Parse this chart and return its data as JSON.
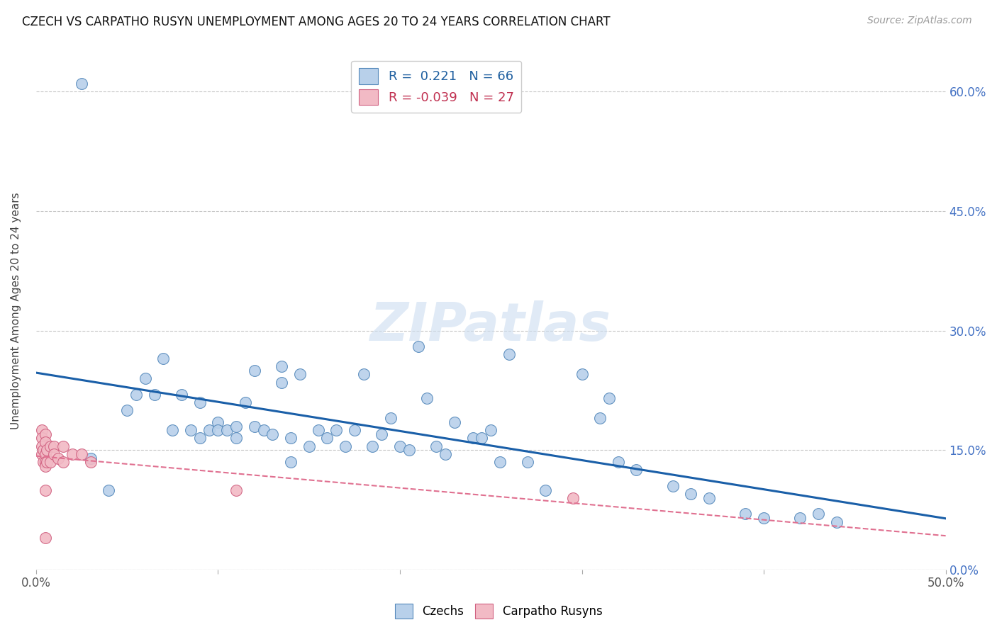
{
  "title": "CZECH VS CARPATHO RUSYN UNEMPLOYMENT AMONG AGES 20 TO 24 YEARS CORRELATION CHART",
  "source": "Source: ZipAtlas.com",
  "ylabel": "Unemployment Among Ages 20 to 24 years",
  "xlim": [
    0.0,
    0.5
  ],
  "ylim": [
    0.0,
    0.65
  ],
  "yticks_right": [
    0.0,
    0.15,
    0.3,
    0.45,
    0.6
  ],
  "ytick_labels_right": [
    "0.0%",
    "15.0%",
    "30.0%",
    "45.0%",
    "60.0%"
  ],
  "xtick_positions": [
    0.0,
    0.1,
    0.2,
    0.3,
    0.4,
    0.5
  ],
  "xtick_labels": [
    "0.0%",
    "",
    "",
    "",
    "",
    "50.0%"
  ],
  "background_color": "#ffffff",
  "grid_color": "#c8c8c8",
  "czech_fill_color": "#b8d0ea",
  "czech_edge_color": "#5589bb",
  "carpatho_fill_color": "#f2bac5",
  "carpatho_edge_color": "#d06080",
  "czech_line_color": "#1a5fa8",
  "carpatho_line_color": "#e07090",
  "watermark": "ZIPatlas",
  "legend_R_czech": " 0.221",
  "legend_N_czech": "66",
  "legend_R_carpatho": "-0.039",
  "legend_N_carpatho": "27",
  "czech_x": [
    0.025,
    0.03,
    0.04,
    0.05,
    0.055,
    0.06,
    0.065,
    0.07,
    0.075,
    0.08,
    0.085,
    0.09,
    0.09,
    0.095,
    0.1,
    0.1,
    0.105,
    0.11,
    0.11,
    0.115,
    0.12,
    0.12,
    0.125,
    0.13,
    0.135,
    0.135,
    0.14,
    0.14,
    0.145,
    0.15,
    0.155,
    0.16,
    0.165,
    0.17,
    0.175,
    0.18,
    0.185,
    0.19,
    0.195,
    0.2,
    0.205,
    0.21,
    0.215,
    0.22,
    0.225,
    0.23,
    0.24,
    0.245,
    0.25,
    0.255,
    0.26,
    0.27,
    0.28,
    0.3,
    0.31,
    0.315,
    0.32,
    0.33,
    0.35,
    0.36,
    0.37,
    0.39,
    0.4,
    0.42,
    0.43,
    0.44
  ],
  "czech_y": [
    0.61,
    0.14,
    0.1,
    0.2,
    0.22,
    0.24,
    0.22,
    0.265,
    0.175,
    0.22,
    0.175,
    0.21,
    0.165,
    0.175,
    0.185,
    0.175,
    0.175,
    0.18,
    0.165,
    0.21,
    0.18,
    0.25,
    0.175,
    0.17,
    0.255,
    0.235,
    0.165,
    0.135,
    0.245,
    0.155,
    0.175,
    0.165,
    0.175,
    0.155,
    0.175,
    0.245,
    0.155,
    0.17,
    0.19,
    0.155,
    0.15,
    0.28,
    0.215,
    0.155,
    0.145,
    0.185,
    0.165,
    0.165,
    0.175,
    0.135,
    0.27,
    0.135,
    0.1,
    0.245,
    0.19,
    0.215,
    0.135,
    0.125,
    0.105,
    0.095,
    0.09,
    0.07,
    0.065,
    0.065,
    0.07,
    0.06
  ],
  "carpatho_x": [
    0.003,
    0.003,
    0.003,
    0.003,
    0.004,
    0.004,
    0.005,
    0.005,
    0.005,
    0.005,
    0.005,
    0.005,
    0.005,
    0.006,
    0.006,
    0.008,
    0.008,
    0.01,
    0.01,
    0.012,
    0.015,
    0.015,
    0.02,
    0.025,
    0.03,
    0.11,
    0.295
  ],
  "carpatho_y": [
    0.175,
    0.165,
    0.155,
    0.145,
    0.15,
    0.135,
    0.17,
    0.16,
    0.145,
    0.135,
    0.13,
    0.1,
    0.04,
    0.15,
    0.135,
    0.155,
    0.135,
    0.155,
    0.145,
    0.14,
    0.155,
    0.135,
    0.145,
    0.145,
    0.135,
    0.1,
    0.09
  ]
}
